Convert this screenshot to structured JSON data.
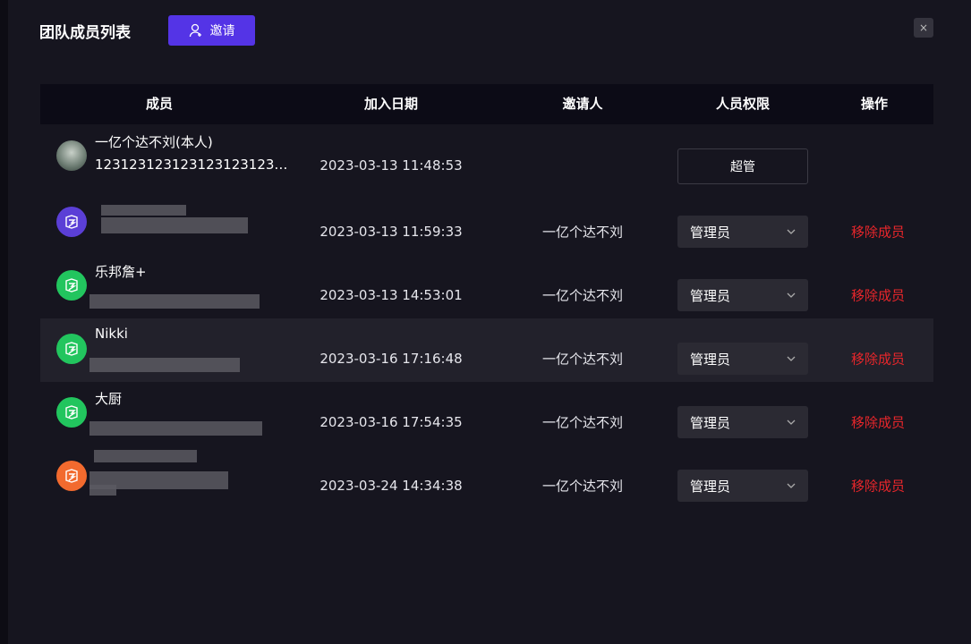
{
  "header": {
    "title": "团队成员列表",
    "invite_button": "邀请",
    "close_button": "×"
  },
  "table": {
    "columns": [
      "成员",
      "加入日期",
      "邀请人",
      "人员权限",
      "操作"
    ],
    "rows": [
      {
        "name": "一亿个达不刘(本人)",
        "account": "123123123123123123123…",
        "joined": "2023-03-13 11:48:53",
        "role": "超管"
      },
      {
        "joined": "2023-03-13 11:59:33",
        "inviter": "一亿个达不刘",
        "role": "管理员",
        "action": "移除成员"
      },
      {
        "name": "乐邦詹+",
        "joined": "2023-03-13 14:53:01",
        "inviter": "一亿个达不刘",
        "role": "管理员",
        "action": "移除成员"
      },
      {
        "name": "Nikki",
        "joined": "2023-03-16 17:16:48",
        "inviter": "一亿个达不刘",
        "role": "管理员",
        "action": "移除成员"
      },
      {
        "name": "大厨",
        "joined": "2023-03-16 17:54:35",
        "inviter": "一亿个达不刘",
        "role": "管理员",
        "action": "移除成员"
      },
      {
        "joined": "2023-03-24 14:34:38",
        "inviter": "一亿个达不刘",
        "role": "管理员",
        "action": "移除成员"
      }
    ]
  }
}
